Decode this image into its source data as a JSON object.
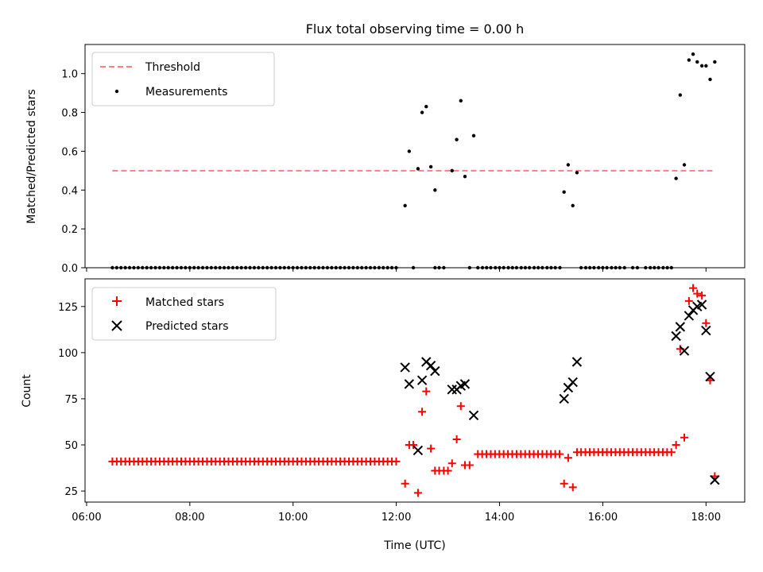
{
  "chart_data": [
    {
      "type": "scatter",
      "title": "Flux total observing time = 0.00 h",
      "xlabel": "",
      "ylabel": "Matched/Predicted stars",
      "ylim": [
        0,
        1.15
      ],
      "yticks": [
        "0.0",
        "0.2",
        "0.4",
        "0.6",
        "0.8",
        "1.0"
      ],
      "ytick_values": [
        0,
        0.2,
        0.4,
        0.6,
        0.8,
        1.0
      ],
      "legend_position": "top-left",
      "threshold": {
        "name": "Threshold",
        "value": 0.5,
        "x_start": 6.5,
        "x_end": 18.17,
        "color": "#ff7f7f",
        "style": "dashed"
      },
      "series": [
        {
          "name": "Measurements",
          "color": "#000000",
          "marker": "dot",
          "zero_run_x": [
            6.5,
            12.08,
            0.0833
          ],
          "zero_extra_x": [
            12.33,
            12.75,
            12.83,
            12.92,
            13.42,
            13.58,
            13.67,
            13.75,
            13.83,
            13.92,
            14.0,
            14.08,
            14.17,
            14.25,
            14.33,
            14.42,
            14.5,
            14.58,
            14.67,
            14.75,
            14.83,
            14.92,
            15.0,
            15.08,
            15.17,
            15.58,
            15.67,
            15.75,
            15.83,
            15.92,
            16.0,
            16.08,
            16.17,
            16.25,
            16.33,
            16.42,
            16.58,
            16.67,
            16.83,
            16.92,
            17.0,
            17.08,
            17.17,
            17.25,
            17.33
          ],
          "points": [
            [
              12.17,
              0.32
            ],
            [
              12.25,
              0.6
            ],
            [
              12.42,
              0.51
            ],
            [
              12.5,
              0.8
            ],
            [
              12.58,
              0.83
            ],
            [
              12.67,
              0.52
            ],
            [
              12.75,
              0.4
            ],
            [
              13.08,
              0.5
            ],
            [
              13.17,
              0.66
            ],
            [
              13.25,
              0.86
            ],
            [
              13.33,
              0.47
            ],
            [
              13.5,
              0.68
            ],
            [
              15.25,
              0.39
            ],
            [
              15.33,
              0.53
            ],
            [
              15.42,
              0.32
            ],
            [
              15.5,
              0.49
            ],
            [
              17.42,
              0.46
            ],
            [
              17.5,
              0.89
            ],
            [
              17.58,
              0.53
            ],
            [
              17.67,
              1.07
            ],
            [
              17.75,
              1.1
            ],
            [
              17.83,
              1.06
            ],
            [
              17.92,
              1.04
            ],
            [
              18.0,
              1.04
            ],
            [
              18.08,
              0.97
            ],
            [
              18.17,
              1.06
            ]
          ]
        }
      ]
    },
    {
      "type": "scatter",
      "title": "",
      "xlabel": "Time (UTC)",
      "ylabel": "Count",
      "xlim": [
        5.97,
        18.75
      ],
      "ylim": [
        19,
        140
      ],
      "xticks": [
        "06:00",
        "08:00",
        "10:00",
        "12:00",
        "14:00",
        "16:00",
        "18:00"
      ],
      "xtick_values": [
        6,
        8,
        10,
        12,
        14,
        16,
        18
      ],
      "yticks": [
        "25",
        "50",
        "75",
        "100",
        "125"
      ],
      "ytick_values": [
        25,
        50,
        75,
        100,
        125
      ],
      "legend_position": "top-left",
      "series": [
        {
          "name": "Matched stars",
          "color": "#ff0000",
          "marker": "plus",
          "run_segments": [
            [
              6.5,
              12.08,
              0.0833,
              41
            ],
            [
              13.58,
              15.17,
              0.0833,
              45
            ],
            [
              15.58,
              17.25,
              0.0833,
              46
            ]
          ],
          "points": [
            [
              12.17,
              29
            ],
            [
              12.25,
              50
            ],
            [
              12.33,
              50
            ],
            [
              12.42,
              24
            ],
            [
              12.5,
              68
            ],
            [
              12.58,
              79
            ],
            [
              12.67,
              48
            ],
            [
              12.75,
              36
            ],
            [
              12.83,
              36
            ],
            [
              12.92,
              36
            ],
            [
              13.0,
              36
            ],
            [
              13.08,
              40
            ],
            [
              13.17,
              53
            ],
            [
              13.25,
              71
            ],
            [
              13.33,
              39
            ],
            [
              13.42,
              39
            ],
            [
              15.25,
              29
            ],
            [
              15.33,
              43
            ],
            [
              15.42,
              27
            ],
            [
              15.5,
              46
            ],
            [
              17.33,
              46
            ],
            [
              17.42,
              50
            ],
            [
              17.5,
              102
            ],
            [
              17.58,
              54
            ],
            [
              17.67,
              128
            ],
            [
              17.75,
              135
            ],
            [
              17.83,
              132
            ],
            [
              17.92,
              131
            ],
            [
              18.0,
              116
            ],
            [
              18.08,
              85
            ],
            [
              18.17,
              33
            ]
          ]
        },
        {
          "name": "Predicted stars",
          "color": "#000000",
          "marker": "x",
          "points": [
            [
              12.17,
              92
            ],
            [
              12.25,
              83
            ],
            [
              12.42,
              47
            ],
            [
              12.5,
              85
            ],
            [
              12.58,
              95
            ],
            [
              12.67,
              93
            ],
            [
              12.75,
              90
            ],
            [
              13.08,
              80
            ],
            [
              13.17,
              80
            ],
            [
              13.25,
              82
            ],
            [
              13.33,
              83
            ],
            [
              13.5,
              66
            ],
            [
              15.25,
              75
            ],
            [
              15.33,
              81
            ],
            [
              15.42,
              84
            ],
            [
              15.5,
              95
            ],
            [
              17.42,
              109
            ],
            [
              17.5,
              114
            ],
            [
              17.58,
              101
            ],
            [
              17.67,
              120
            ],
            [
              17.75,
              123
            ],
            [
              17.83,
              125
            ],
            [
              17.92,
              126
            ],
            [
              18.0,
              112
            ],
            [
              18.08,
              87
            ],
            [
              18.17,
              31
            ]
          ]
        }
      ]
    }
  ]
}
